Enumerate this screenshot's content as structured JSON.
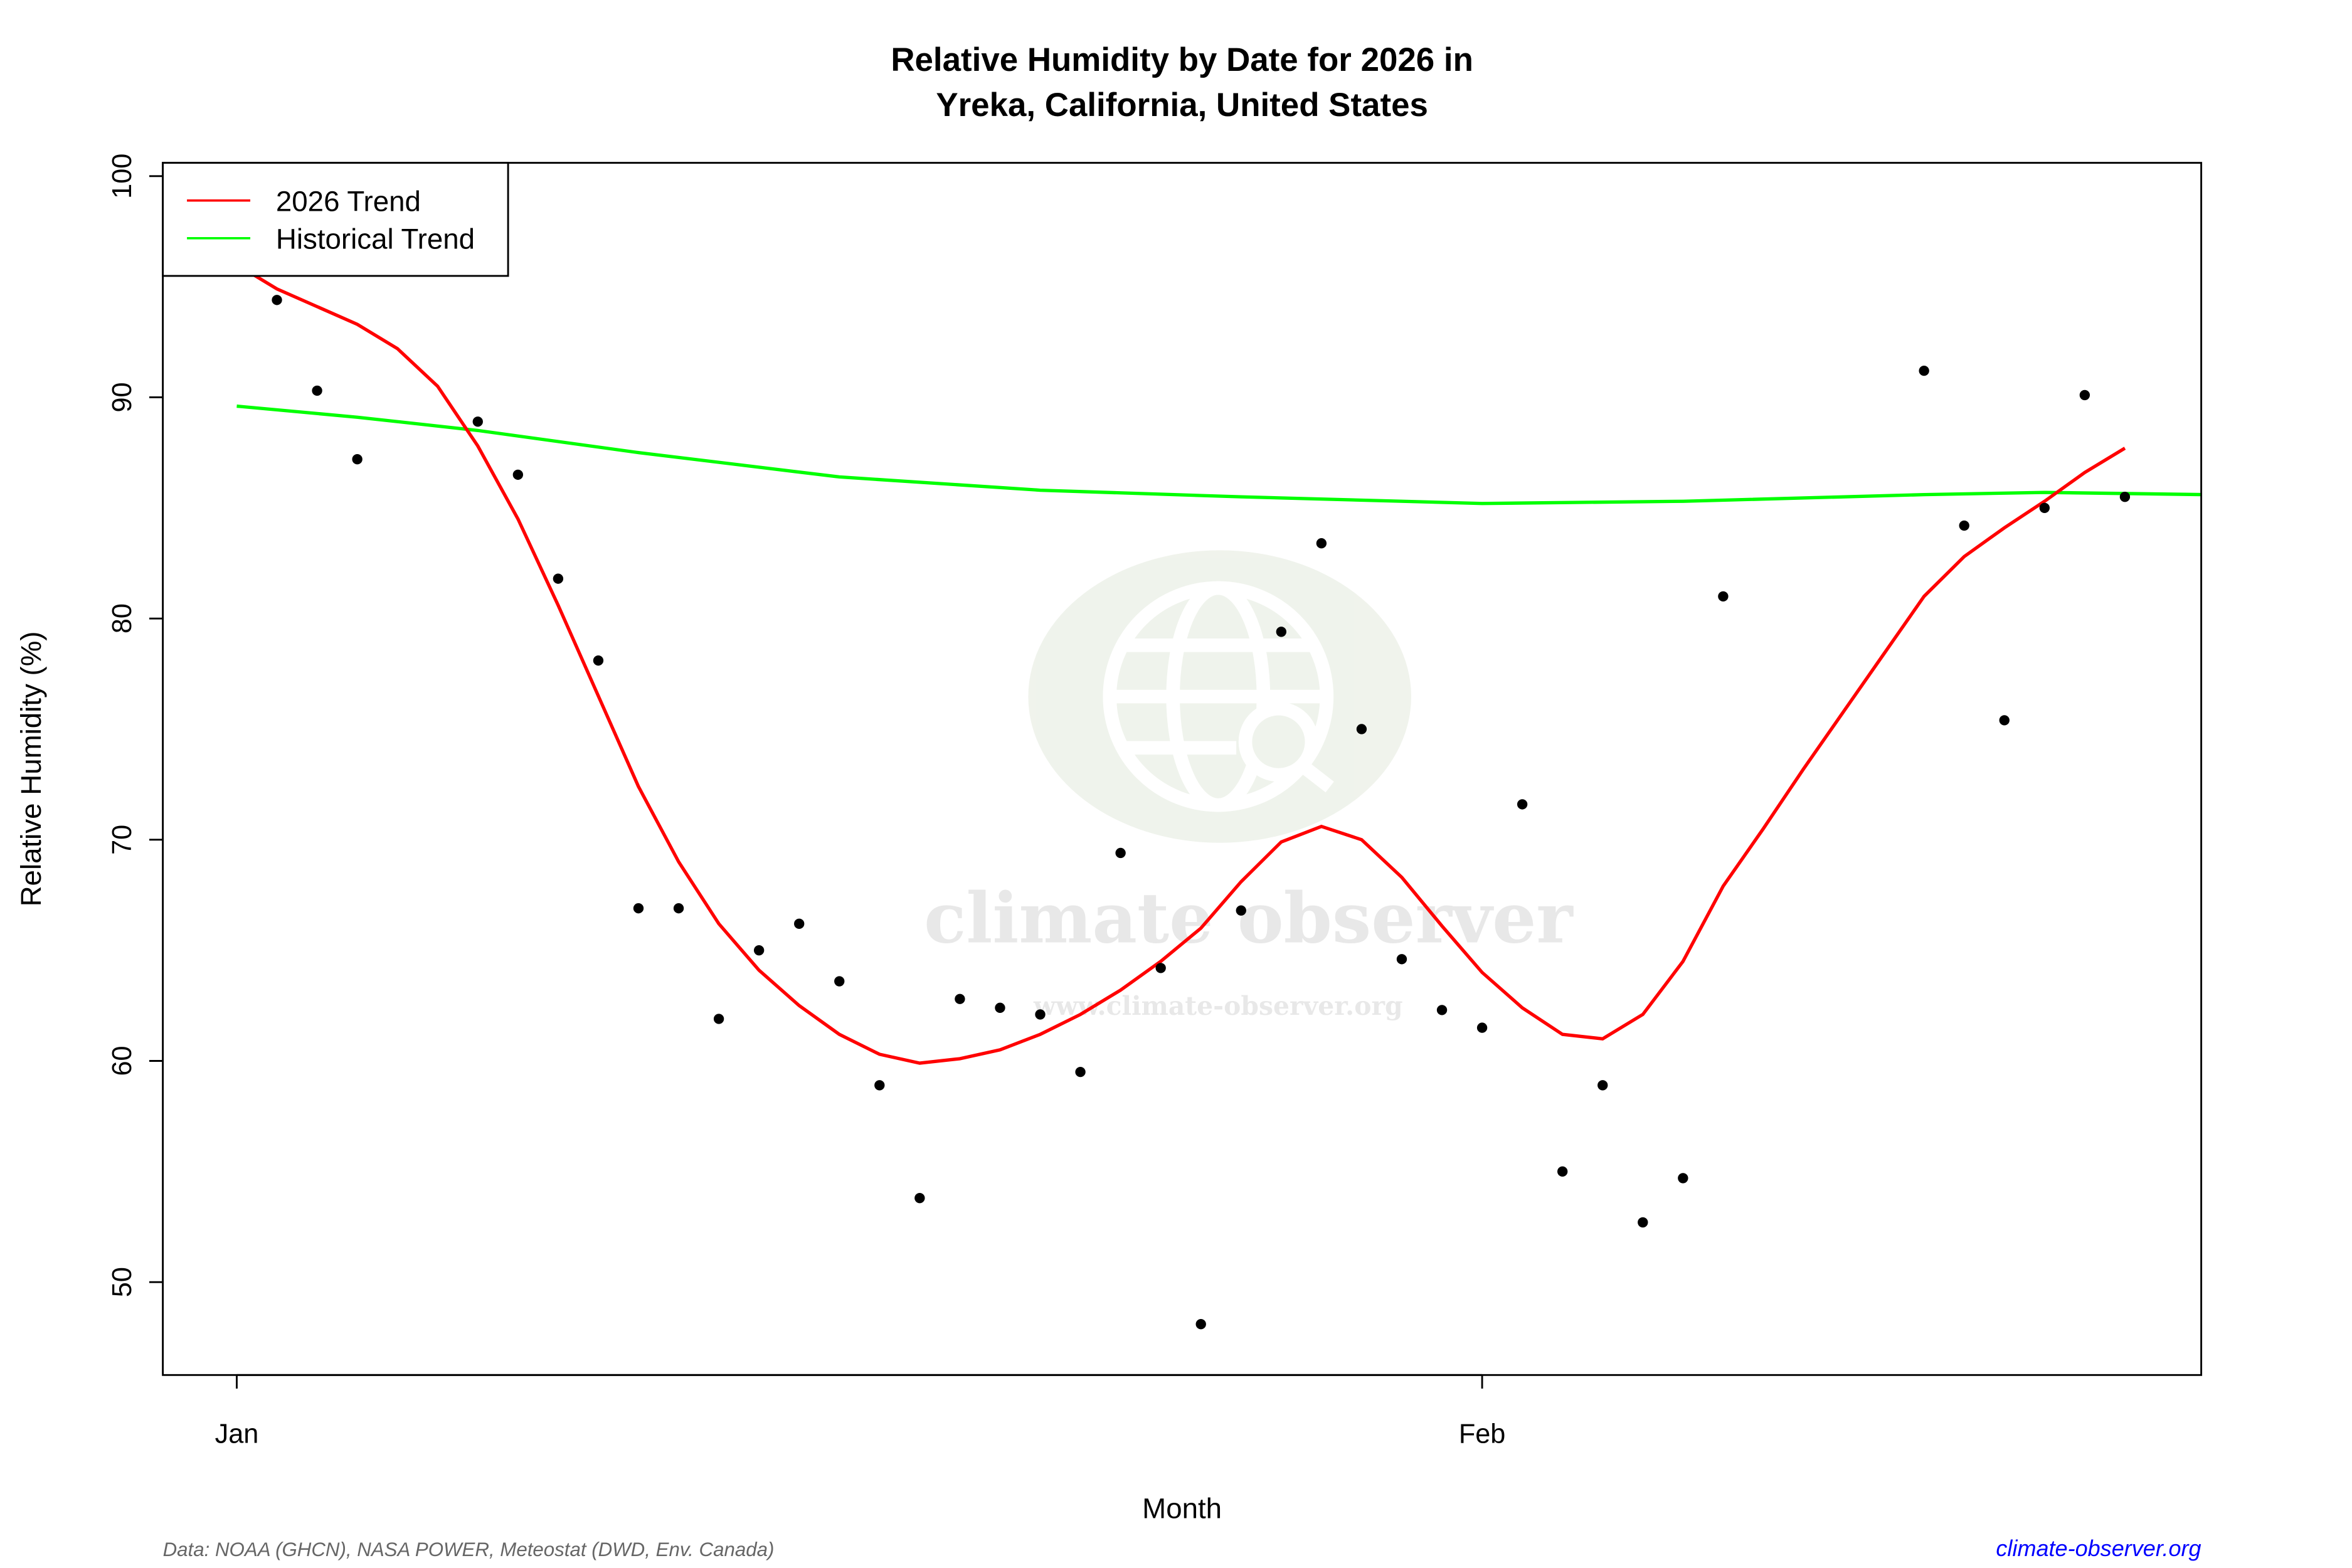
{
  "chart_data": {
    "type": "scatter",
    "title": "Relative Humidity by Date for 2026 in",
    "subtitle": "Yreka, California, United States",
    "xlabel": "Month",
    "ylabel": "Relative Humidity (%)",
    "xlim": [
      "2025-12-30",
      "2026-02-18"
    ],
    "ylim": [
      46,
      100
    ],
    "x_ticks": [
      {
        "date": "2026-01-01",
        "label": "Jan"
      },
      {
        "date": "2026-02-01",
        "label": "Feb"
      }
    ],
    "y_ticks": [
      50,
      60,
      70,
      80,
      90,
      100
    ],
    "grid": false,
    "legend": {
      "placement": "top-left",
      "entries": [
        {
          "label": "2026 Trend",
          "color": "#ff0000"
        },
        {
          "label": "Historical Trend",
          "color": "#00ff00"
        }
      ]
    },
    "points": [
      [
        "2026-01-02",
        94.4
      ],
      [
        "2026-01-03",
        90.3
      ],
      [
        "2026-01-04",
        87.2
      ],
      [
        "2026-01-07",
        88.9
      ],
      [
        "2026-01-08",
        86.5
      ],
      [
        "2026-01-09",
        81.8
      ],
      [
        "2026-01-10",
        78.1
      ],
      [
        "2026-01-11",
        66.9
      ],
      [
        "2026-01-12",
        66.9
      ],
      [
        "2026-01-13",
        61.9
      ],
      [
        "2026-01-14",
        65.0
      ],
      [
        "2026-01-15",
        66.2
      ],
      [
        "2026-01-16",
        63.6
      ],
      [
        "2026-01-17",
        58.9
      ],
      [
        "2026-01-18",
        53.8
      ],
      [
        "2026-01-19",
        62.8
      ],
      [
        "2026-01-20",
        62.4
      ],
      [
        "2026-01-21",
        62.1
      ],
      [
        "2026-01-22",
        59.5
      ],
      [
        "2026-01-23",
        69.4
      ],
      [
        "2026-01-24",
        64.2
      ],
      [
        "2026-01-25",
        48.1
      ],
      [
        "2026-01-26",
        66.8
      ],
      [
        "2026-01-27",
        79.4
      ],
      [
        "2026-01-28",
        83.4
      ],
      [
        "2026-01-29",
        75.0
      ],
      [
        "2026-01-30",
        64.6
      ],
      [
        "2026-01-31",
        62.3
      ],
      [
        "2026-02-01",
        61.5
      ],
      [
        "2026-02-02",
        71.6
      ],
      [
        "2026-02-03",
        55.0
      ],
      [
        "2026-02-04",
        58.9
      ],
      [
        "2026-02-05",
        52.7
      ],
      [
        "2026-02-06",
        54.7
      ],
      [
        "2026-02-07",
        81.0
      ],
      [
        "2026-02-12",
        91.2
      ],
      [
        "2026-02-13",
        84.2
      ],
      [
        "2026-02-14",
        75.4
      ],
      [
        "2026-02-15",
        85.0
      ],
      [
        "2026-02-16",
        90.1
      ],
      [
        "2026-02-17",
        85.5
      ]
    ],
    "series": [
      {
        "name": "2026 Trend",
        "color": "#ff0000",
        "values": [
          [
            "2026-01-01",
            96.0
          ],
          [
            "2026-01-02",
            94.9
          ],
          [
            "2026-01-03",
            94.1
          ],
          [
            "2026-01-04",
            93.3
          ],
          [
            "2026-01-05",
            92.2
          ],
          [
            "2026-01-06",
            90.5
          ],
          [
            "2026-01-07",
            87.8
          ],
          [
            "2026-01-08",
            84.5
          ],
          [
            "2026-01-09",
            80.6
          ],
          [
            "2026-01-10",
            76.5
          ],
          [
            "2026-01-11",
            72.4
          ],
          [
            "2026-01-12",
            69.0
          ],
          [
            "2026-01-13",
            66.2
          ],
          [
            "2026-01-14",
            64.1
          ],
          [
            "2026-01-15",
            62.5
          ],
          [
            "2026-01-16",
            61.2
          ],
          [
            "2026-01-17",
            60.3
          ],
          [
            "2026-01-18",
            59.9
          ],
          [
            "2026-01-19",
            60.1
          ],
          [
            "2026-01-20",
            60.5
          ],
          [
            "2026-01-21",
            61.2
          ],
          [
            "2026-01-22",
            62.1
          ],
          [
            "2026-01-23",
            63.2
          ],
          [
            "2026-01-24",
            64.5
          ],
          [
            "2026-01-25",
            66.0
          ],
          [
            "2026-01-26",
            68.1
          ],
          [
            "2026-01-27",
            69.9
          ],
          [
            "2026-01-28",
            70.6
          ],
          [
            "2026-01-29",
            70.0
          ],
          [
            "2026-01-30",
            68.3
          ],
          [
            "2026-01-31",
            66.1
          ],
          [
            "2026-02-01",
            64.0
          ],
          [
            "2026-02-02",
            62.4
          ],
          [
            "2026-02-03",
            61.2
          ],
          [
            "2026-02-04",
            61.0
          ],
          [
            "2026-02-05",
            62.1
          ],
          [
            "2026-02-06",
            64.5
          ],
          [
            "2026-02-07",
            67.9
          ],
          [
            "2026-02-08",
            70.5
          ],
          [
            "2026-02-09",
            73.2
          ],
          [
            "2026-02-10",
            75.8
          ],
          [
            "2026-02-11",
            78.4
          ],
          [
            "2026-02-12",
            81.0
          ],
          [
            "2026-02-13",
            82.8
          ],
          [
            "2026-02-14",
            84.1
          ],
          [
            "2026-02-15",
            85.3
          ],
          [
            "2026-02-16",
            86.6
          ],
          [
            "2026-02-17",
            87.7
          ]
        ]
      },
      {
        "name": "Historical Trend",
        "color": "#00ff00",
        "values": [
          [
            "2026-01-01",
            89.6
          ],
          [
            "2026-01-04",
            89.1
          ],
          [
            "2026-01-07",
            88.5
          ],
          [
            "2026-01-11",
            87.5
          ],
          [
            "2026-01-16",
            86.4
          ],
          [
            "2026-01-21",
            85.8
          ],
          [
            "2026-01-26",
            85.5
          ],
          [
            "2026-02-01",
            85.2
          ],
          [
            "2026-02-06",
            85.3
          ],
          [
            "2026-02-12",
            85.6
          ],
          [
            "2026-02-15",
            85.7
          ],
          [
            "2026-02-19",
            85.6
          ]
        ]
      }
    ]
  },
  "footer": {
    "source": "Data: NOAA (GHCN), NASA POWER, Meteostat (DWD, Env. Canada)",
    "site_link": "climate-observer.org",
    "link_color": "#0000ff"
  },
  "watermark": {
    "brand": "climate observer",
    "url": "www.climate-observer.org"
  }
}
